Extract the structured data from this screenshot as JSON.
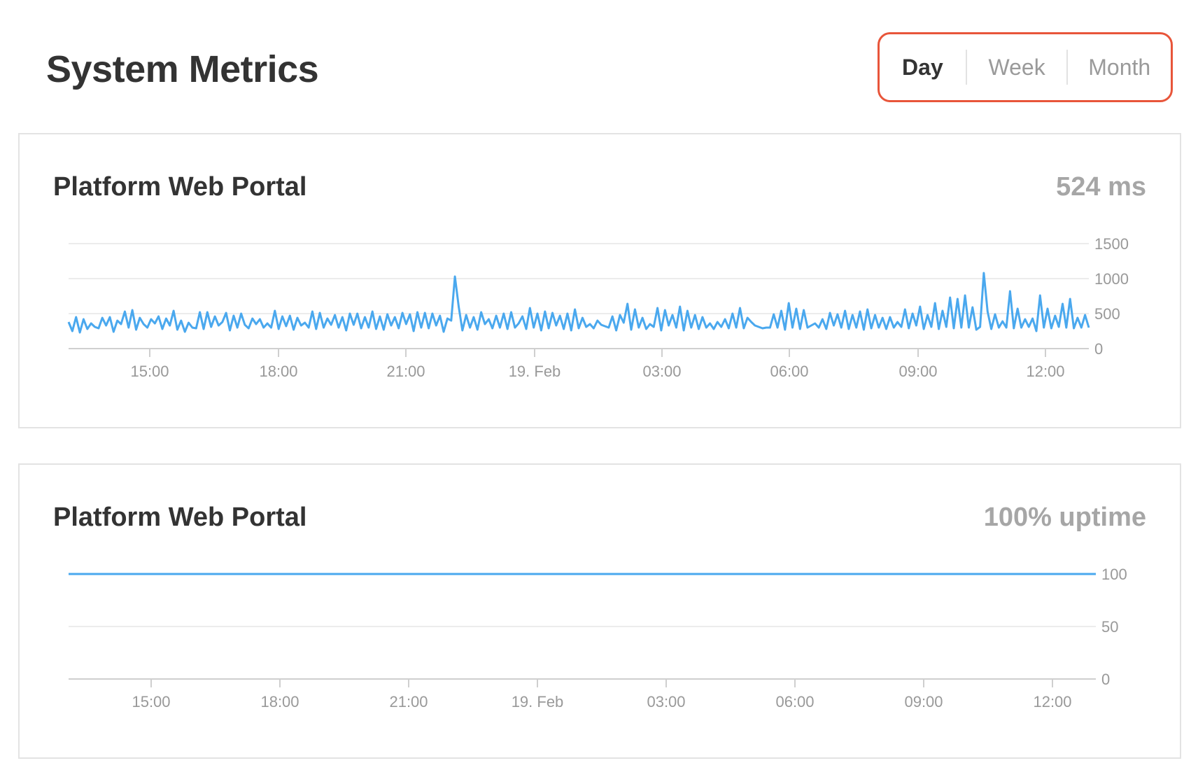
{
  "page": {
    "title": "System Metrics"
  },
  "range_toggle": {
    "options": [
      "Day",
      "Week",
      "Month"
    ],
    "selected": "Day",
    "highlight_color": "#e8553a"
  },
  "colors": {
    "series_line": "#4aa8ee",
    "gridline": "#e6e6e6",
    "axis_line": "#cfcfcf",
    "tick_text": "#999999",
    "value_text": "#a6a6a6"
  },
  "cards": [
    {
      "title": "Platform Web Portal",
      "value": "524 ms"
    },
    {
      "title": "Platform Web Portal",
      "value": "100% uptime"
    }
  ],
  "chart_data": [
    {
      "type": "line",
      "title": "Platform Web Portal",
      "x_ticks": [
        "15:00",
        "18:00",
        "21:00",
        "19. Feb",
        "03:00",
        "06:00",
        "09:00",
        "12:00"
      ],
      "x_range": [
        "18 Feb 13:07",
        "19 Feb 13:03"
      ],
      "ylim": [
        0,
        1500
      ],
      "y_ticks": [
        0,
        500,
        1000,
        1500
      ],
      "y_axis_side": "right",
      "grid": true,
      "series": [
        {
          "values": [
            380,
            250,
            450,
            230,
            420,
            280,
            360,
            310,
            290,
            440,
            330,
            450,
            240,
            400,
            350,
            530,
            300,
            550,
            270,
            440,
            350,
            300,
            420,
            360,
            460,
            280,
            430,
            330,
            540,
            270,
            400,
            240,
            370,
            300,
            290,
            520,
            280,
            520,
            310,
            460,
            330,
            380,
            510,
            260,
            470,
            300,
            500,
            340,
            290,
            430,
            350,
            420,
            300,
            360,
            300,
            540,
            280,
            460,
            320,
            470,
            270,
            440,
            330,
            370,
            300,
            530,
            280,
            510,
            300,
            430,
            340,
            480,
            300,
            450,
            260,
            500,
            340,
            500,
            290,
            450,
            300,
            530,
            280,
            460,
            270,
            490,
            330,
            450,
            290,
            510,
            350,
            490,
            250,
            520,
            300,
            510,
            290,
            500,
            330,
            470,
            240,
            430,
            400,
            1030,
            600,
            260,
            480,
            300,
            450,
            270,
            520,
            350,
            420,
            290,
            470,
            300,
            500,
            280,
            520,
            300,
            360,
            460,
            280,
            580,
            300,
            500,
            260,
            530,
            290,
            510,
            330,
            470,
            280,
            500,
            260,
            560,
            290,
            440,
            310,
            350,
            290,
            400,
            340,
            320,
            300,
            460,
            260,
            480,
            370,
            640,
            270,
            560,
            300,
            440,
            280,
            350,
            310,
            580,
            260,
            550,
            330,
            480,
            300,
            600,
            260,
            540,
            300,
            480,
            280,
            450,
            300,
            360,
            280,
            380,
            310,
            420,
            290,
            500,
            300,
            580,
            290,
            440,
            380,
            330,
            310,
            290,
            300,
            300,
            490,
            300,
            540,
            270,
            650,
            300,
            570,
            280,
            550,
            300,
            330,
            360,
            300,
            420,
            280,
            510,
            330,
            490,
            300,
            540,
            280,
            480,
            300,
            530,
            270,
            560,
            290,
            480,
            300,
            440,
            280,
            450,
            300,
            380,
            310,
            560,
            290,
            500,
            330,
            600,
            280,
            480,
            310,
            650,
            280,
            540,
            310,
            730,
            290,
            710,
            300,
            760,
            300,
            590,
            270,
            310,
            1080,
            530,
            280,
            490,
            300,
            390,
            300,
            820,
            290,
            570,
            300,
            420,
            310,
            430,
            250,
            760,
            300,
            570,
            290,
            470,
            310,
            640,
            300,
            710,
            290,
            440,
            300,
            480,
            300
          ]
        }
      ]
    },
    {
      "type": "line",
      "title": "Platform Web Portal",
      "x_ticks": [
        "15:00",
        "18:00",
        "21:00",
        "19. Feb",
        "03:00",
        "06:00",
        "09:00",
        "12:00"
      ],
      "x_range": [
        "18 Feb 13:07",
        "19 Feb 13:03"
      ],
      "ylim": [
        0,
        100
      ],
      "y_ticks": [
        0,
        50,
        100
      ],
      "y_axis_side": "right",
      "grid": true,
      "series": [
        {
          "values": [
            100,
            100
          ]
        }
      ]
    }
  ]
}
